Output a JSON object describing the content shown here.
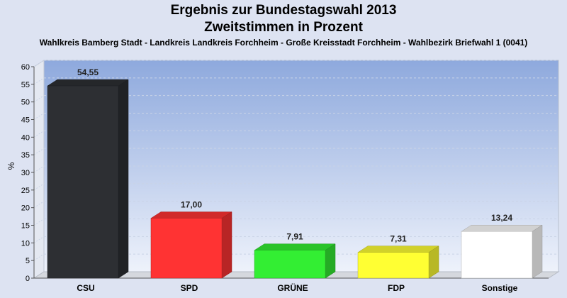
{
  "chart_data": {
    "type": "bar",
    "title": "Ergebnis zur Bundestagswahl 2013",
    "subtitle": "Zweitstimmen in Prozent",
    "subtitle2": "Wahlkreis Bamberg Stadt - Landkreis Landkreis Forchheim - Große Kreisstadt Forchheim - Wahlbezirk Briefwahl 1 (0041)",
    "ylabel": "%",
    "ylim": [
      0,
      60
    ],
    "yticks": [
      0,
      5,
      10,
      15,
      20,
      25,
      30,
      35,
      40,
      45,
      50,
      55,
      60
    ],
    "categories": [
      "CSU",
      "SPD",
      "GRÜNE",
      "FDP",
      "Sonstige"
    ],
    "values": [
      54.55,
      17.0,
      7.91,
      7.31,
      13.24
    ],
    "value_labels": [
      "54,55",
      "17,00",
      "7,91",
      "7,31",
      "13,24"
    ],
    "colors": [
      "#2d2f33",
      "#ff3333",
      "#33ee33",
      "#ffff33",
      "#ffffff"
    ],
    "grid": true
  }
}
